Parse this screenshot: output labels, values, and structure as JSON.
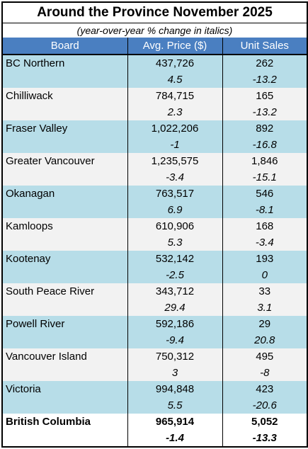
{
  "title": "Around the Province November 2025",
  "subtitle": "(year-over-year % change in italics)",
  "header": [
    "Board",
    "Avg. Price ($)",
    "Unit Sales"
  ],
  "rows": [
    {
      "board": "BC Northern",
      "price": "437,726",
      "price_change": "4.5",
      "sales": "262",
      "sales_change": "-13.2"
    },
    {
      "board": "Chilliwack",
      "price": "784,715",
      "price_change": "2.3",
      "sales": "165",
      "sales_change": "-13.2"
    },
    {
      "board": "Fraser Valley",
      "price": "1,022,206",
      "price_change": "-1",
      "sales": "892",
      "sales_change": "-16.8"
    },
    {
      "board": "Greater Vancouver",
      "price": "1,235,575",
      "price_change": "-3.4",
      "sales": "1,846",
      "sales_change": "-15.1"
    },
    {
      "board": "Okanagan",
      "price": "763,517",
      "price_change": "6.9",
      "sales": "546",
      "sales_change": "-8.1"
    },
    {
      "board": "Kamloops",
      "price": "610,906",
      "price_change": "5.3",
      "sales": "168",
      "sales_change": "-3.4"
    },
    {
      "board": "Kootenay",
      "price": "532,142",
      "price_change": "-2.5",
      "sales": "193",
      "sales_change": "0"
    },
    {
      "board": "South Peace River",
      "price": "343,712",
      "price_change": "29.4",
      "sales": "33",
      "sales_change": "3.1"
    },
    {
      "board": "Powell River",
      "price": "592,186",
      "price_change": "-9.4",
      "sales": "29",
      "sales_change": "20.8"
    },
    {
      "board": "Vancouver Island",
      "price": "750,312",
      "price_change": "3",
      "sales": "495",
      "sales_change": "-8"
    },
    {
      "board": "Victoria",
      "price": "994,848",
      "price_change": "5.5",
      "sales": "423",
      "sales_change": "-20.6"
    }
  ],
  "total": {
    "board": "British Columbia",
    "price": "965,914",
    "price_change": "-1.4",
    "sales": "5,052",
    "sales_change": "-13.3"
  }
}
